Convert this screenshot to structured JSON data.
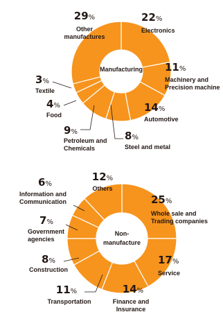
{
  "accent_color": "#F7941D",
  "chart_data": [
    {
      "type": "pie",
      "title": "",
      "center_label": [
        "Manufacturing"
      ],
      "slices": [
        {
          "label": [
            "Electronics"
          ],
          "value": 22
        },
        {
          "label": [
            "Machinery and",
            "Precision machine"
          ],
          "value": 11
        },
        {
          "label": [
            "Automotive"
          ],
          "value": 14
        },
        {
          "label": [
            "Steel and metal"
          ],
          "value": 8
        },
        {
          "label": [
            "Petroleum and",
            "Chemicals"
          ],
          "value": 9
        },
        {
          "label": [
            "Food"
          ],
          "value": 4
        },
        {
          "label": [
            "Textile"
          ],
          "value": 3
        },
        {
          "label": [
            "Other",
            "manufactures"
          ],
          "value": 29
        }
      ]
    },
    {
      "type": "pie",
      "title": "",
      "center_label": [
        "Non-",
        "manufacture"
      ],
      "slices": [
        {
          "label": [
            "Whole sale and",
            "Trading companies"
          ],
          "value": 25
        },
        {
          "label": [
            "Service"
          ],
          "value": 17
        },
        {
          "label": [
            "Finance and",
            "Insurance"
          ],
          "value": 14
        },
        {
          "label": [
            "Transportation"
          ],
          "value": 11
        },
        {
          "label": [
            "Construction"
          ],
          "value": 8
        },
        {
          "label": [
            "Government",
            "agencies"
          ],
          "value": 7
        },
        {
          "label": [
            "Information and",
            "Communication"
          ],
          "value": 6
        },
        {
          "label": [
            "Others"
          ],
          "value": 12
        }
      ]
    }
  ]
}
